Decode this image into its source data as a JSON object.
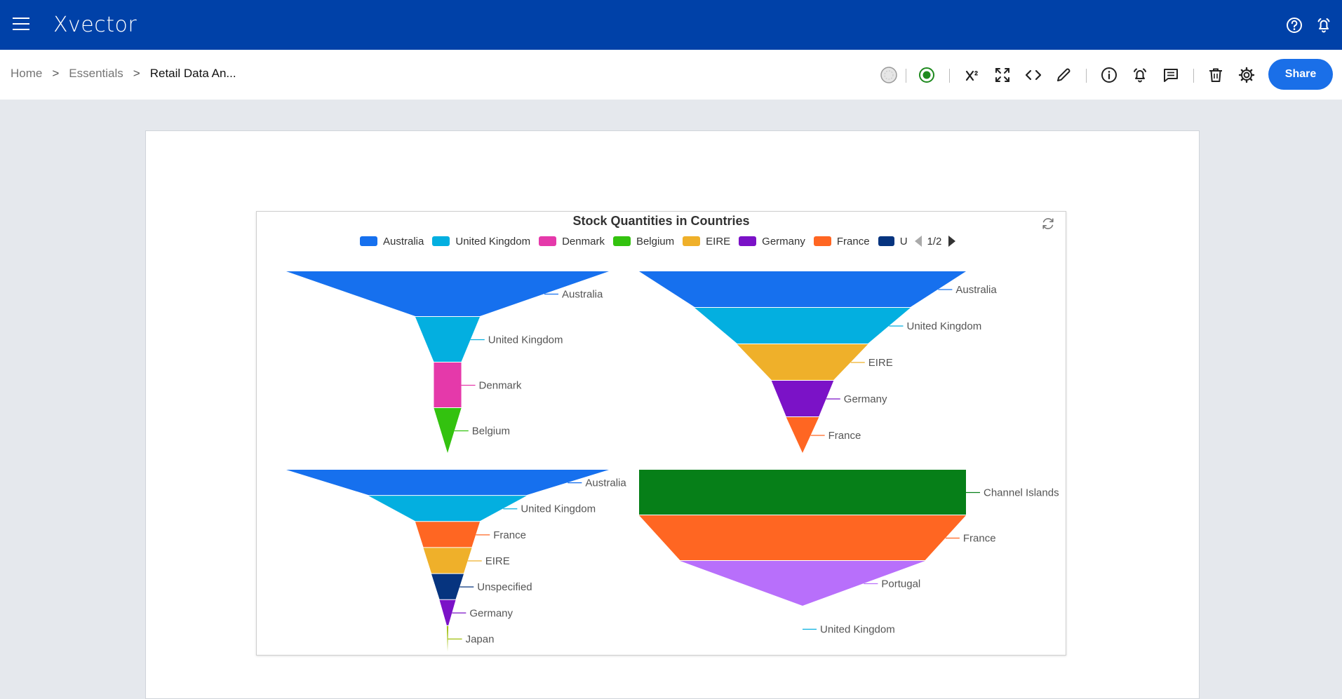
{
  "app": {
    "logo": "Xvector",
    "icons": {
      "menu": "hamburger-icon",
      "help": "help-icon",
      "alerts": "bell-icon"
    }
  },
  "breadcrumb": {
    "items": [
      {
        "label": "Home"
      },
      {
        "label": "Essentials"
      },
      {
        "label": "Retail Data An..."
      }
    ],
    "separator": ">"
  },
  "toolbar": {
    "tools": [
      {
        "name": "status-icon"
      },
      {
        "name": "record-icon"
      },
      {
        "name": "superscript-icon",
        "label": "X²"
      },
      {
        "name": "fullscreen-icon"
      },
      {
        "name": "code-icon"
      },
      {
        "name": "edit-icon"
      },
      {
        "name": "info-icon"
      },
      {
        "name": "alert-icon"
      },
      {
        "name": "comment-icon"
      },
      {
        "name": "delete-icon"
      },
      {
        "name": "settings-icon"
      }
    ],
    "share_label": "Share"
  },
  "colors": {
    "header": "#0041a8",
    "accent": "#1a6fe8",
    "record": "#1e8a1e"
  },
  "chart_card": {
    "refresh_icon": "refresh-icon",
    "pager_label": "1/2",
    "legend": [
      {
        "label": "Australia",
        "color": "#1670ee"
      },
      {
        "label": "United Kingdom",
        "color": "#03afe0"
      },
      {
        "label": "Denmark",
        "color": "#e539aa"
      },
      {
        "label": "Belgium",
        "color": "#33c20f"
      },
      {
        "label": "EIRE",
        "color": "#efb02a"
      },
      {
        "label": "Germany",
        "color": "#7b12c7"
      },
      {
        "label": "France",
        "color": "#ff6622"
      },
      {
        "label": "U",
        "color": "#06347f"
      }
    ]
  },
  "chart_data": {
    "type": "funnel",
    "title": "Stock Quantities in Countries",
    "note": "Funnel widths are relative stage magnitudes as drawn (largest stage = 100).",
    "funnels": [
      {
        "stages": [
          {
            "label": "Australia",
            "value": 100,
            "color": "#1670ee"
          },
          {
            "label": "United Kingdom",
            "value": 20,
            "color": "#03afe0"
          },
          {
            "label": "Denmark",
            "value": 8.5,
            "color": "#e539aa"
          },
          {
            "label": "Belgium",
            "value": 8.5,
            "color": "#33c20f"
          }
        ]
      },
      {
        "stages": [
          {
            "label": "Australia",
            "value": 100,
            "color": "#1670ee"
          },
          {
            "label": "United Kingdom",
            "value": 66,
            "color": "#03afe0"
          },
          {
            "label": "EIRE",
            "value": 40,
            "color": "#efb02a"
          },
          {
            "label": "Germany",
            "value": 19,
            "color": "#7b12c7"
          },
          {
            "label": "France",
            "value": 10,
            "color": "#ff6622"
          }
        ]
      },
      {
        "stages": [
          {
            "label": "Australia",
            "value": 100,
            "color": "#1670ee"
          },
          {
            "label": "United Kingdom",
            "value": 49,
            "color": "#03afe0"
          },
          {
            "label": "France",
            "value": 20,
            "color": "#ff6622"
          },
          {
            "label": "EIRE",
            "value": 15,
            "color": "#efb02a"
          },
          {
            "label": "Unspecified",
            "value": 10,
            "color": "#06347f"
          },
          {
            "label": "Germany",
            "value": 5,
            "color": "#7b12c7"
          },
          {
            "label": "Japan",
            "value": 0.5,
            "color": "#a5c21a"
          }
        ]
      },
      {
        "stages": [
          {
            "label": "Channel Islands",
            "value": 100,
            "color": "#067f18"
          },
          {
            "label": "France",
            "value": 100,
            "color": "#ff6622"
          },
          {
            "label": "Portugal",
            "value": 75,
            "color": "#b86ffb"
          },
          {
            "label": "United Kingdom",
            "value": 0,
            "color": "#03afe0"
          }
        ]
      }
    ]
  }
}
